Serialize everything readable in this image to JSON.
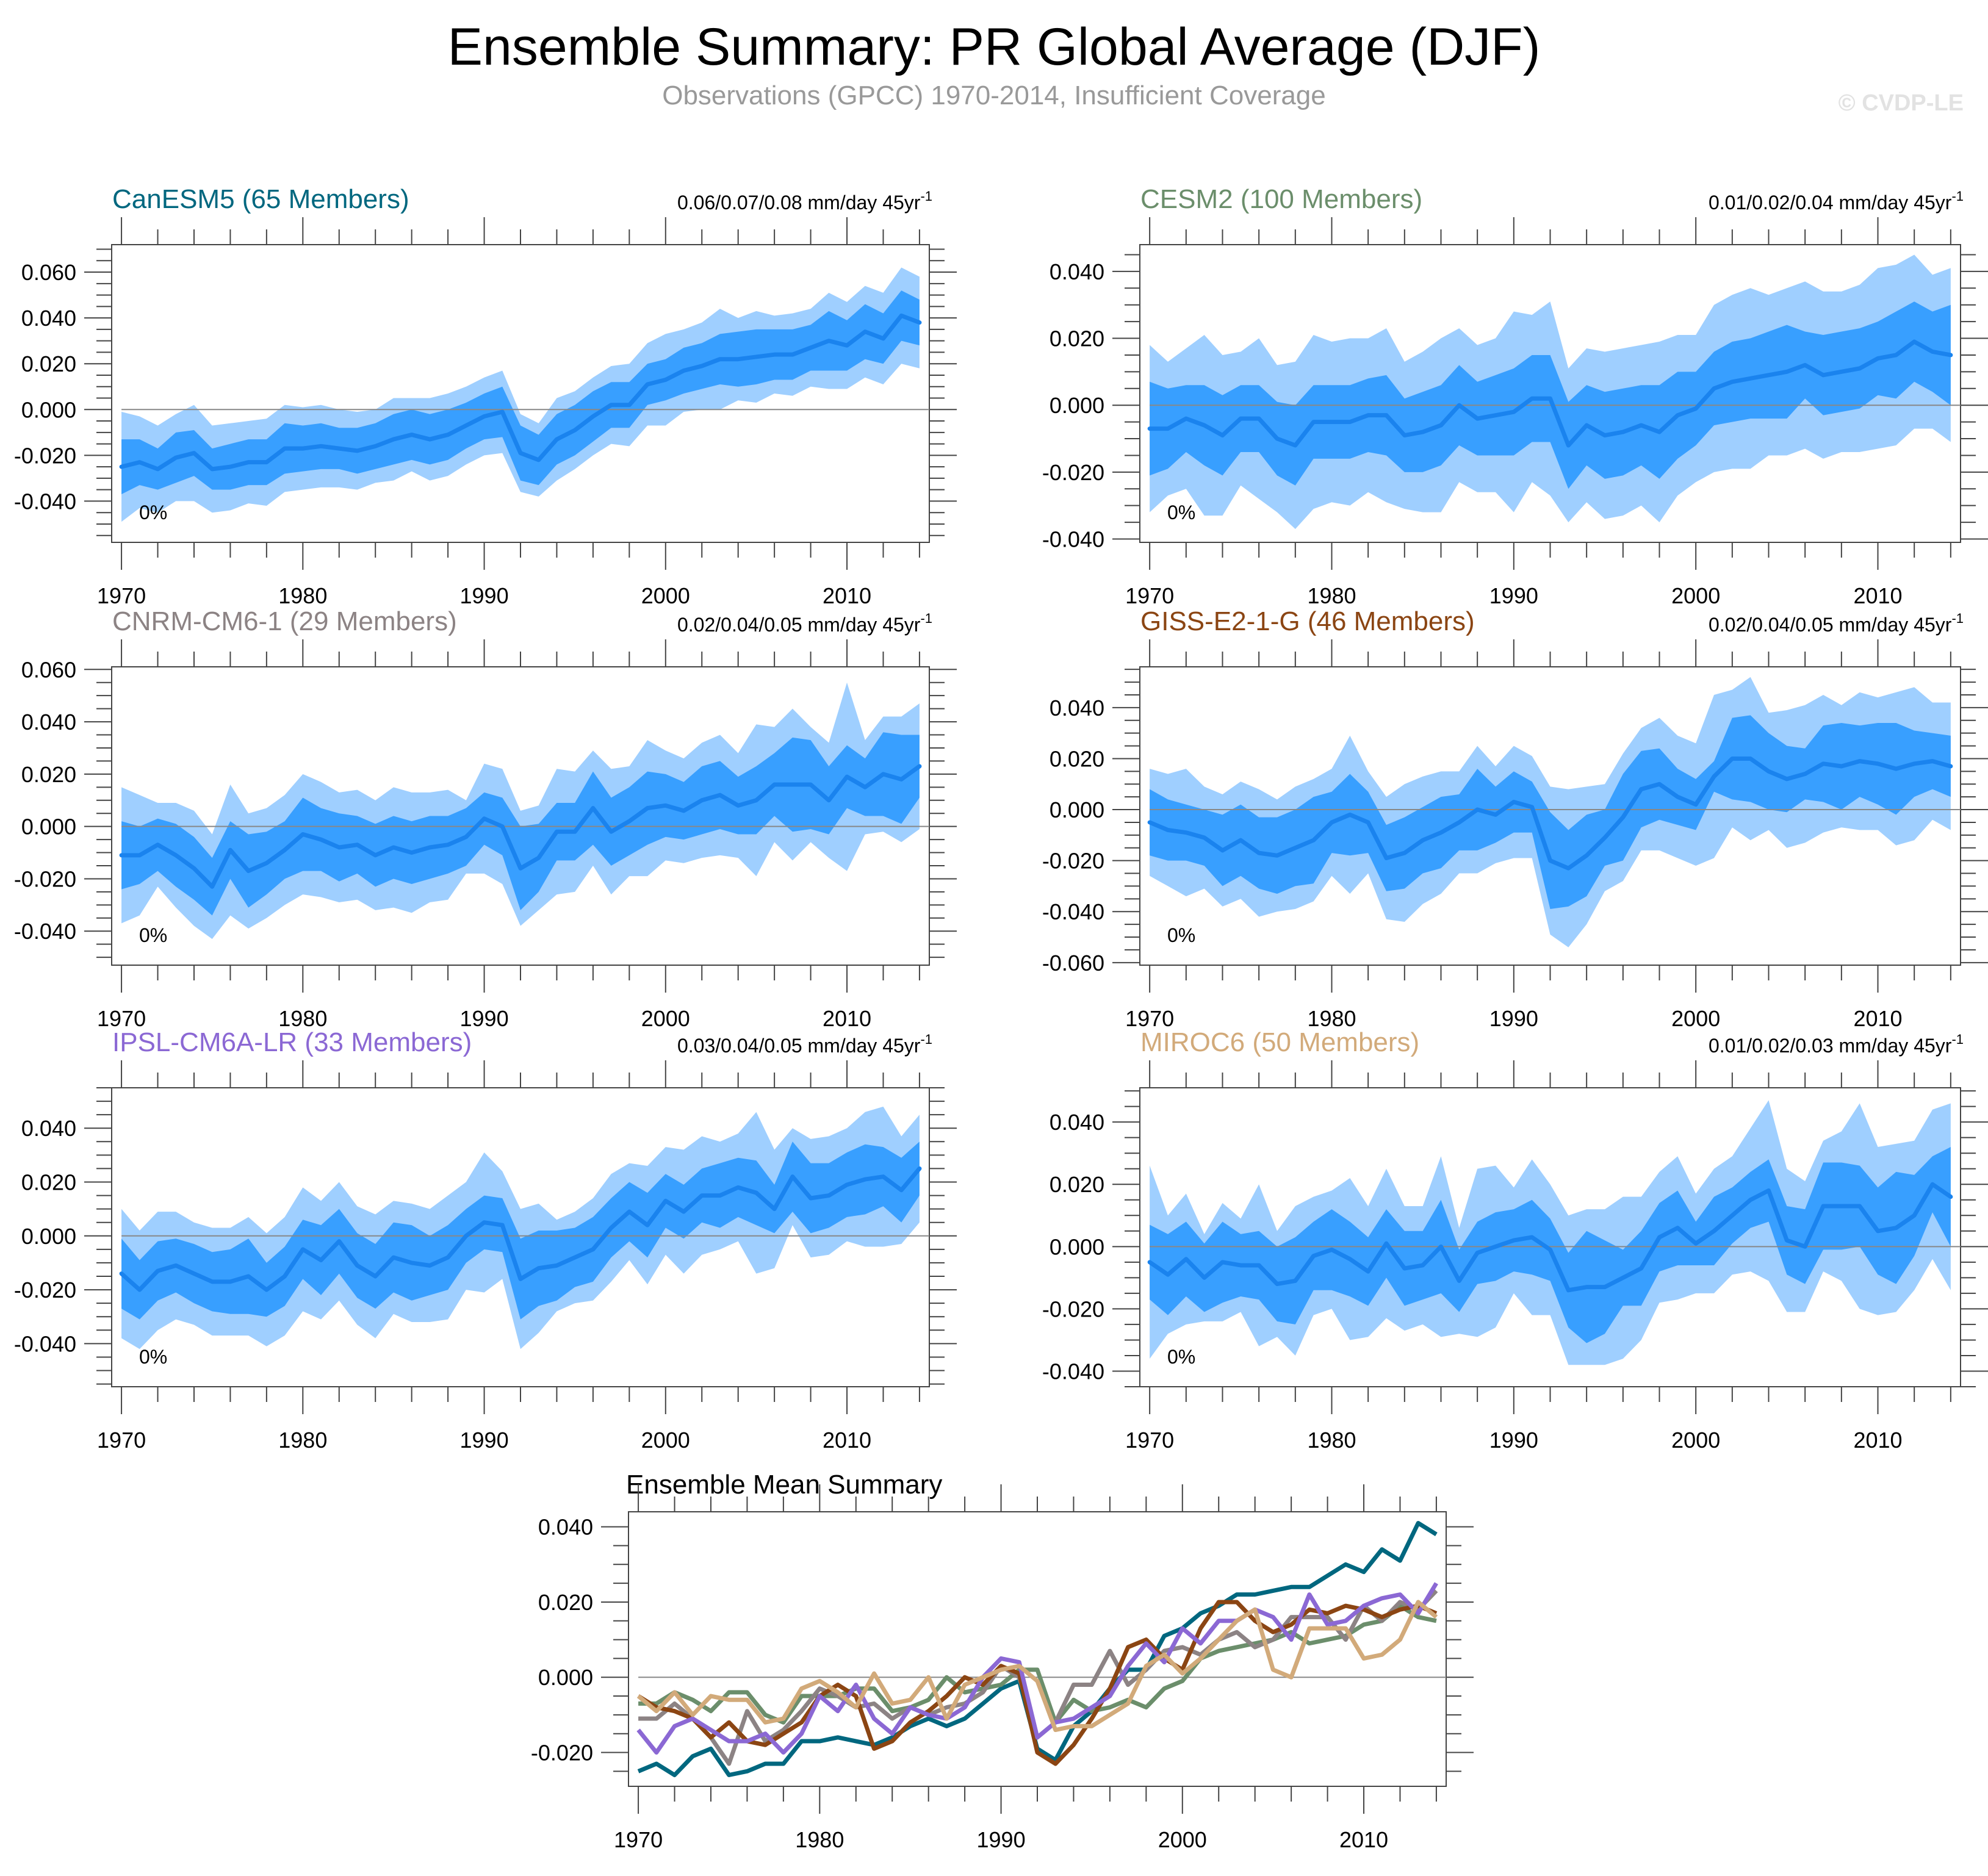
{
  "header": {
    "title": "Ensemble Summary: PR Global Average (DJF)",
    "subtitle": "Observations (GPCC) 1970-2014, Insufficient Coverage",
    "copyright": "© CVDP-LE"
  },
  "chart_data": [
    {
      "type": "area",
      "title": "CanESM5 (65 Members)",
      "title_color": "#00677f",
      "trend_label": "0.06/0.07/0.08 mm/day 45yr",
      "trend_sup": "-1",
      "percent_label": "0%",
      "x_start": 1970,
      "x_end": 2014,
      "xticks": [
        1970,
        1980,
        1990,
        2000,
        2010
      ],
      "yticks": [
        -0.04,
        -0.02,
        0.0,
        0.02,
        0.04,
        0.06
      ],
      "ytick_labels": [
        "-0.040",
        "-0.020",
        "0.000",
        "0.020",
        "0.040",
        "0.060"
      ],
      "ylim": [
        -0.058,
        0.072
      ],
      "mean": [
        -0.025,
        -0.023,
        -0.026,
        -0.021,
        -0.019,
        -0.026,
        -0.025,
        -0.023,
        -0.023,
        -0.017,
        -0.017,
        -0.016,
        -0.017,
        -0.018,
        -0.016,
        -0.013,
        -0.011,
        -0.013,
        -0.011,
        -0.007,
        -0.003,
        -0.001,
        -0.019,
        -0.022,
        -0.013,
        -0.009,
        -0.003,
        0.002,
        0.002,
        0.011,
        0.013,
        0.017,
        0.019,
        0.022,
        0.022,
        0.023,
        0.024,
        0.024,
        0.027,
        0.03,
        0.028,
        0.034,
        0.031,
        0.041,
        0.038
      ],
      "inner": [
        0.012,
        0.01,
        0.009,
        0.011,
        0.01,
        0.009,
        0.01,
        0.01,
        0.01,
        0.011,
        0.01,
        0.01,
        0.009,
        0.01,
        0.01,
        0.011,
        0.011,
        0.011,
        0.011,
        0.01,
        0.01,
        0.011,
        0.012,
        0.011,
        0.011,
        0.011,
        0.011,
        0.01,
        0.01,
        0.009,
        0.009,
        0.01,
        0.01,
        0.011,
        0.012,
        0.012,
        0.011,
        0.011,
        0.01,
        0.013,
        0.011,
        0.012,
        0.011,
        0.011,
        0.01
      ],
      "outer": [
        0.024,
        0.02,
        0.019,
        0.019,
        0.021,
        0.019,
        0.019,
        0.018,
        0.019,
        0.019,
        0.018,
        0.018,
        0.017,
        0.017,
        0.016,
        0.018,
        0.016,
        0.018,
        0.018,
        0.017,
        0.017,
        0.018,
        0.017,
        0.016,
        0.018,
        0.017,
        0.017,
        0.017,
        0.018,
        0.018,
        0.02,
        0.018,
        0.019,
        0.022,
        0.018,
        0.02,
        0.017,
        0.018,
        0.017,
        0.021,
        0.019,
        0.02,
        0.02,
        0.021,
        0.02
      ]
    },
    {
      "type": "area",
      "title": "CESM2 (100 Members)",
      "title_color": "#6b8e6b",
      "trend_label": "0.01/0.02/0.04 mm/day 45yr",
      "trend_sup": "-1",
      "percent_label": "0%",
      "x_start": 1970,
      "x_end": 2014,
      "xticks": [
        1970,
        1980,
        1990,
        2000,
        2010
      ],
      "yticks": [
        -0.04,
        -0.02,
        0.0,
        0.02,
        0.04
      ],
      "ytick_labels": [
        "-0.040",
        "-0.020",
        "0.000",
        "0.020",
        "0.040"
      ],
      "ylim": [
        -0.041,
        0.048
      ],
      "mean": [
        -0.007,
        -0.007,
        -0.004,
        -0.006,
        -0.009,
        -0.004,
        -0.004,
        -0.01,
        -0.012,
        -0.005,
        -0.005,
        -0.005,
        -0.003,
        -0.003,
        -0.009,
        -0.008,
        -0.006,
        -0.0,
        -0.004,
        -0.003,
        -0.002,
        0.002,
        0.002,
        -0.012,
        -0.006,
        -0.009,
        -0.008,
        -0.006,
        -0.008,
        -0.003,
        -0.001,
        0.005,
        0.007,
        0.008,
        0.009,
        0.01,
        0.012,
        0.009,
        0.01,
        0.011,
        0.014,
        0.015,
        0.019,
        0.016,
        0.015
      ],
      "inner": [
        0.014,
        0.012,
        0.01,
        0.012,
        0.012,
        0.01,
        0.01,
        0.011,
        0.012,
        0.011,
        0.011,
        0.011,
        0.011,
        0.012,
        0.011,
        0.012,
        0.012,
        0.012,
        0.011,
        0.012,
        0.013,
        0.013,
        0.013,
        0.013,
        0.012,
        0.013,
        0.013,
        0.012,
        0.014,
        0.013,
        0.011,
        0.011,
        0.012,
        0.012,
        0.013,
        0.014,
        0.01,
        0.012,
        0.012,
        0.012,
        0.011,
        0.013,
        0.012,
        0.012,
        0.015
      ],
      "outer": [
        0.025,
        0.02,
        0.021,
        0.027,
        0.024,
        0.02,
        0.024,
        0.022,
        0.025,
        0.026,
        0.024,
        0.025,
        0.023,
        0.026,
        0.022,
        0.024,
        0.026,
        0.023,
        0.022,
        0.023,
        0.03,
        0.025,
        0.029,
        0.023,
        0.023,
        0.025,
        0.025,
        0.024,
        0.027,
        0.024,
        0.022,
        0.025,
        0.026,
        0.027,
        0.024,
        0.025,
        0.025,
        0.025,
        0.024,
        0.025,
        0.027,
        0.027,
        0.026,
        0.023,
        0.026
      ]
    },
    {
      "type": "area",
      "title": "CNRM-CM6-1 (29 Members)",
      "title_color": "#8c8384",
      "trend_label": "0.02/0.04/0.05 mm/day 45yr",
      "trend_sup": "-1",
      "percent_label": "0%",
      "x_start": 1970,
      "x_end": 2014,
      "xticks": [
        1970,
        1980,
        1990,
        2000,
        2010
      ],
      "yticks": [
        -0.04,
        -0.02,
        0.0,
        0.02,
        0.04,
        0.06
      ],
      "ytick_labels": [
        "-0.040",
        "-0.020",
        "0.000",
        "0.020",
        "0.040",
        "0.060"
      ],
      "ylim": [
        -0.053,
        0.061
      ],
      "mean": [
        -0.011,
        -0.011,
        -0.007,
        -0.011,
        -0.016,
        -0.023,
        -0.009,
        -0.017,
        -0.014,
        -0.009,
        -0.003,
        -0.005,
        -0.008,
        -0.007,
        -0.011,
        -0.008,
        -0.01,
        -0.008,
        -0.007,
        -0.004,
        0.003,
        0.0,
        -0.016,
        -0.012,
        -0.002,
        -0.002,
        0.007,
        -0.002,
        0.002,
        0.007,
        0.008,
        0.006,
        0.01,
        0.012,
        0.008,
        0.01,
        0.016,
        0.016,
        0.016,
        0.01,
        0.019,
        0.015,
        0.02,
        0.018,
        0.023
      ],
      "inner": [
        0.013,
        0.011,
        0.01,
        0.012,
        0.012,
        0.011,
        0.011,
        0.014,
        0.012,
        0.011,
        0.014,
        0.012,
        0.013,
        0.011,
        0.012,
        0.012,
        0.012,
        0.012,
        0.011,
        0.011,
        0.01,
        0.011,
        0.016,
        0.013,
        0.011,
        0.011,
        0.014,
        0.013,
        0.013,
        0.014,
        0.012,
        0.011,
        0.013,
        0.013,
        0.011,
        0.013,
        0.012,
        0.018,
        0.017,
        0.013,
        0.012,
        0.011,
        0.016,
        0.017,
        0.012
      ],
      "outer": [
        0.026,
        0.023,
        0.016,
        0.02,
        0.022,
        0.02,
        0.025,
        0.022,
        0.021,
        0.021,
        0.023,
        0.022,
        0.021,
        0.021,
        0.021,
        0.023,
        0.023,
        0.021,
        0.021,
        0.014,
        0.021,
        0.022,
        0.022,
        0.02,
        0.024,
        0.023,
        0.022,
        0.024,
        0.021,
        0.026,
        0.021,
        0.02,
        0.022,
        0.023,
        0.02,
        0.029,
        0.022,
        0.029,
        0.022,
        0.022,
        0.036,
        0.018,
        0.022,
        0.024,
        0.024
      ]
    },
    {
      "type": "area",
      "title": "GISS-E2-1-G (46 Members)",
      "title_color": "#8b4513",
      "trend_label": "0.02/0.04/0.05 mm/day 45yr",
      "trend_sup": "-1",
      "percent_label": "0%",
      "x_start": 1970,
      "x_end": 2014,
      "xticks": [
        1970,
        1980,
        1990,
        2000,
        2010
      ],
      "yticks": [
        -0.06,
        -0.04,
        -0.02,
        0.0,
        0.02,
        0.04
      ],
      "ytick_labels": [
        "-0.060",
        "-0.040",
        "-0.020",
        "0.000",
        "0.020",
        "0.040"
      ],
      "ylim": [
        -0.061,
        0.056
      ],
      "mean": [
        -0.005,
        -0.008,
        -0.009,
        -0.011,
        -0.016,
        -0.012,
        -0.017,
        -0.018,
        -0.015,
        -0.012,
        -0.005,
        -0.002,
        -0.005,
        -0.019,
        -0.017,
        -0.012,
        -0.009,
        -0.005,
        0.0,
        -0.002,
        0.003,
        0.001,
        -0.02,
        -0.023,
        -0.018,
        -0.011,
        -0.003,
        0.008,
        0.01,
        0.005,
        0.002,
        0.013,
        0.02,
        0.02,
        0.015,
        0.012,
        0.014,
        0.018,
        0.017,
        0.019,
        0.018,
        0.016,
        0.018,
        0.019,
        0.017
      ],
      "inner": [
        0.013,
        0.012,
        0.011,
        0.011,
        0.014,
        0.014,
        0.014,
        0.015,
        0.015,
        0.017,
        0.012,
        0.016,
        0.012,
        0.013,
        0.014,
        0.013,
        0.014,
        0.011,
        0.016,
        0.011,
        0.012,
        0.01,
        0.019,
        0.015,
        0.016,
        0.011,
        0.017,
        0.015,
        0.014,
        0.011,
        0.01,
        0.006,
        0.016,
        0.017,
        0.015,
        0.013,
        0.01,
        0.015,
        0.017,
        0.014,
        0.016,
        0.018,
        0.013,
        0.011,
        0.012
      ],
      "outer": [
        0.021,
        0.022,
        0.025,
        0.02,
        0.022,
        0.023,
        0.025,
        0.022,
        0.024,
        0.024,
        0.021,
        0.031,
        0.02,
        0.024,
        0.027,
        0.025,
        0.024,
        0.02,
        0.025,
        0.019,
        0.022,
        0.02,
        0.029,
        0.031,
        0.027,
        0.021,
        0.025,
        0.024,
        0.026,
        0.024,
        0.024,
        0.032,
        0.027,
        0.032,
        0.023,
        0.027,
        0.027,
        0.027,
        0.024,
        0.027,
        0.026,
        0.03,
        0.03,
        0.023,
        0.025
      ]
    },
    {
      "type": "area",
      "title": "IPSL-CM6A-LR (33 Members)",
      "title_color": "#8b68d4",
      "trend_label": "0.03/0.04/0.05 mm/day 45yr",
      "trend_sup": "-1",
      "percent_label": "0%",
      "x_start": 1970,
      "x_end": 2014,
      "xticks": [
        1970,
        1980,
        1990,
        2000,
        2010
      ],
      "yticks": [
        -0.04,
        -0.02,
        0.0,
        0.02,
        0.04
      ],
      "ytick_labels": [
        "-0.040",
        "-0.020",
        "0.000",
        "0.020",
        "0.040"
      ],
      "ylim": [
        -0.056,
        0.055
      ],
      "mean": [
        -0.014,
        -0.02,
        -0.013,
        -0.011,
        -0.014,
        -0.017,
        -0.017,
        -0.015,
        -0.02,
        -0.015,
        -0.005,
        -0.009,
        -0.002,
        -0.011,
        -0.015,
        -0.008,
        -0.01,
        -0.011,
        -0.008,
        0.0,
        0.005,
        0.004,
        -0.016,
        -0.012,
        -0.011,
        -0.008,
        -0.005,
        0.003,
        0.009,
        0.004,
        0.013,
        0.009,
        0.015,
        0.015,
        0.018,
        0.016,
        0.01,
        0.022,
        0.014,
        0.015,
        0.019,
        0.021,
        0.022,
        0.017,
        0.025
      ],
      "inner": [
        0.013,
        0.011,
        0.011,
        0.01,
        0.011,
        0.011,
        0.012,
        0.014,
        0.01,
        0.011,
        0.011,
        0.013,
        0.012,
        0.012,
        0.012,
        0.013,
        0.014,
        0.011,
        0.012,
        0.01,
        0.01,
        0.01,
        0.015,
        0.014,
        0.013,
        0.011,
        0.012,
        0.011,
        0.011,
        0.012,
        0.01,
        0.01,
        0.01,
        0.012,
        0.011,
        0.012,
        0.009,
        0.013,
        0.013,
        0.012,
        0.012,
        0.013,
        0.011,
        0.012,
        0.01
      ],
      "outer": [
        0.024,
        0.022,
        0.022,
        0.02,
        0.019,
        0.02,
        0.02,
        0.022,
        0.021,
        0.022,
        0.023,
        0.022,
        0.022,
        0.022,
        0.023,
        0.021,
        0.022,
        0.021,
        0.023,
        0.02,
        0.026,
        0.02,
        0.026,
        0.024,
        0.017,
        0.017,
        0.019,
        0.02,
        0.018,
        0.022,
        0.02,
        0.023,
        0.022,
        0.02,
        0.02,
        0.03,
        0.022,
        0.018,
        0.022,
        0.022,
        0.021,
        0.025,
        0.026,
        0.02,
        0.02
      ]
    },
    {
      "type": "area",
      "title": "MIROC6 (50 Members)",
      "title_color": "#d2aa7a",
      "trend_label": "0.01/0.02/0.03 mm/day 45yr",
      "trend_sup": "-1",
      "percent_label": "0%",
      "x_start": 1970,
      "x_end": 2014,
      "xticks": [
        1970,
        1980,
        1990,
        2000,
        2010
      ],
      "yticks": [
        -0.04,
        -0.02,
        0.0,
        0.02,
        0.04
      ],
      "ytick_labels": [
        "-0.040",
        "-0.020",
        "0.000",
        "0.020",
        "0.040"
      ],
      "ylim": [
        -0.045,
        0.051
      ],
      "mean": [
        -0.005,
        -0.009,
        -0.004,
        -0.01,
        -0.005,
        -0.006,
        -0.006,
        -0.012,
        -0.011,
        -0.003,
        -0.001,
        -0.004,
        -0.008,
        0.001,
        -0.007,
        -0.006,
        0.0,
        -0.011,
        -0.002,
        0.0,
        0.002,
        0.003,
        -0.001,
        -0.014,
        -0.013,
        -0.013,
        -0.01,
        -0.007,
        0.003,
        0.006,
        0.001,
        0.005,
        0.01,
        0.015,
        0.018,
        0.002,
        0.0,
        0.013,
        0.013,
        0.013,
        0.005,
        0.006,
        0.01,
        0.02,
        0.016
      ],
      "inner": [
        0.012,
        0.013,
        0.012,
        0.011,
        0.013,
        0.01,
        0.011,
        0.012,
        0.014,
        0.011,
        0.013,
        0.012,
        0.011,
        0.011,
        0.012,
        0.011,
        0.015,
        0.01,
        0.01,
        0.011,
        0.01,
        0.012,
        0.01,
        0.012,
        0.018,
        0.015,
        0.009,
        0.012,
        0.011,
        0.012,
        0.007,
        0.011,
        0.009,
        0.009,
        0.01,
        0.011,
        0.012,
        0.014,
        0.014,
        0.013,
        0.014,
        0.018,
        0.013,
        0.009,
        0.016
      ],
      "outer": [
        0.031,
        0.019,
        0.021,
        0.014,
        0.019,
        0.015,
        0.026,
        0.017,
        0.024,
        0.019,
        0.019,
        0.026,
        0.021,
        0.024,
        0.02,
        0.019,
        0.029,
        0.017,
        0.027,
        0.026,
        0.017,
        0.025,
        0.021,
        0.024,
        0.025,
        0.025,
        0.026,
        0.023,
        0.021,
        0.023,
        0.016,
        0.02,
        0.019,
        0.023,
        0.029,
        0.023,
        0.021,
        0.021,
        0.024,
        0.033,
        0.027,
        0.027,
        0.024,
        0.024,
        0.03
      ]
    },
    {
      "type": "line",
      "title": "Ensemble Mean Summary",
      "x_start": 1970,
      "x_end": 2014,
      "xticks": [
        1970,
        1980,
        1990,
        2000,
        2010
      ],
      "yticks": [
        -0.02,
        0.0,
        0.02,
        0.04
      ],
      "ytick_labels": [
        "-0.020",
        "0.000",
        "0.020",
        "0.040"
      ],
      "ylim": [
        -0.029,
        0.044
      ],
      "series": [
        {
          "name": "CanESM5",
          "color": "#00677f",
          "ref": 0
        },
        {
          "name": "CESM2",
          "color": "#6b8e6b",
          "ref": 1
        },
        {
          "name": "CNRM-CM6-1",
          "color": "#8c8384",
          "ref": 2
        },
        {
          "name": "GISS-E2-1-G",
          "color": "#8b4513",
          "ref": 3
        },
        {
          "name": "IPSL-CM6A-LR",
          "color": "#8b68d4",
          "ref": 4
        },
        {
          "name": "MIROC6",
          "color": "#d2aa7a",
          "ref": 5
        }
      ]
    }
  ],
  "colors": {
    "outer_band": "#9fcfff",
    "inner_band": "#389fff",
    "mean_line": "#1a83ee",
    "axis": "#444444",
    "zero_line": "#888888"
  }
}
